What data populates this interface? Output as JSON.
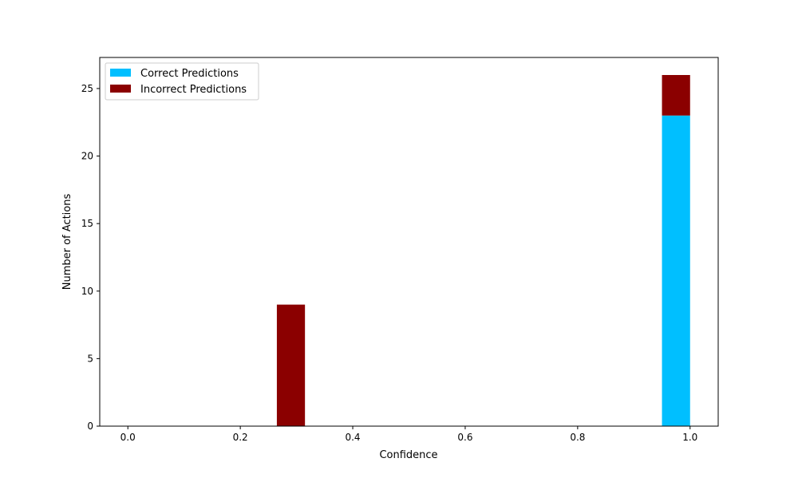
{
  "chart_data": {
    "type": "bar",
    "stacked": true,
    "title": "",
    "xlabel": "Confidence",
    "ylabel": "Number of Actions",
    "xlim": [
      -0.05,
      1.05
    ],
    "ylim": [
      0,
      27.3
    ],
    "xticks": [
      0.0,
      0.2,
      0.4,
      0.6,
      0.8,
      1.0
    ],
    "xtick_labels": [
      "0.0",
      "0.2",
      "0.4",
      "0.6",
      "0.8",
      "1.0"
    ],
    "yticks": [
      0,
      5,
      10,
      15,
      20,
      25
    ],
    "ytick_labels": [
      "0",
      "5",
      "10",
      "15",
      "20",
      "25"
    ],
    "bin_width": 0.05,
    "grid": false,
    "legend_position": "top-left",
    "series": [
      {
        "name": "Correct Predictions",
        "color": "#00BFFF",
        "bars": [
          {
            "x_start": 0.95,
            "x_end": 1.0,
            "value": 23
          }
        ]
      },
      {
        "name": "Incorrect Predictions",
        "color": "#8B0000",
        "bars": [
          {
            "x_start": 0.265,
            "x_end": 0.315,
            "value": 9
          },
          {
            "x_start": 0.95,
            "x_end": 1.0,
            "value": 3
          }
        ]
      }
    ]
  }
}
